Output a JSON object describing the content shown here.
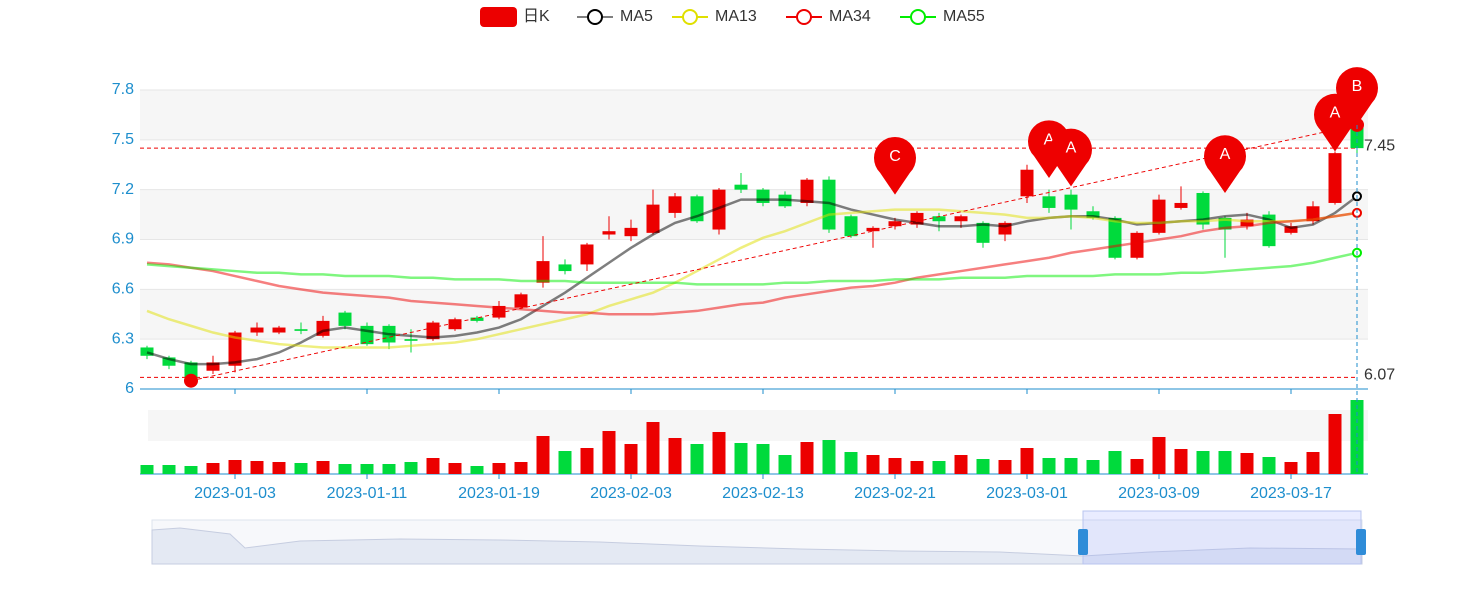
{
  "chart_data": {
    "type": "candlestick",
    "categories": [
      null,
      null,
      null,
      null,
      "2023-01-03",
      null,
      null,
      null,
      null,
      null,
      "2023-01-11",
      null,
      null,
      null,
      null,
      null,
      "2023-01-19",
      null,
      null,
      null,
      null,
      null,
      "2023-02-03",
      null,
      null,
      null,
      null,
      null,
      "2023-02-13",
      null,
      null,
      null,
      null,
      null,
      "2023-02-21",
      null,
      null,
      null,
      null,
      null,
      "2023-03-01",
      null,
      null,
      null,
      null,
      null,
      "2023-03-09",
      null,
      null,
      null,
      null,
      null,
      "2023-03-17",
      null,
      null,
      null
    ],
    "ylim": [
      6,
      7.8
    ],
    "yticks": [
      6,
      6.3,
      6.6,
      6.9,
      7.2,
      7.5,
      7.8
    ],
    "grid": true,
    "up_color": "#ec0000",
    "down_color": "#00da3c",
    "series": [
      {
        "name": "日K",
        "color": "#ec0000",
        "values": [
          [
            6.25,
            6.2,
            6.18,
            6.26
          ],
          [
            6.19,
            6.14,
            6.12,
            6.2
          ],
          [
            6.16,
            6.07,
            6.05,
            6.17
          ],
          [
            6.11,
            6.16,
            6.09,
            6.2
          ],
          [
            6.14,
            6.34,
            6.1,
            6.35
          ],
          [
            6.34,
            6.37,
            6.32,
            6.4
          ],
          [
            6.34,
            6.37,
            6.33,
            6.38
          ],
          [
            6.36,
            6.35,
            6.33,
            6.4
          ],
          [
            6.32,
            6.41,
            6.31,
            6.44
          ],
          [
            6.46,
            6.38,
            6.36,
            6.47
          ],
          [
            6.38,
            6.27,
            6.26,
            6.4
          ],
          [
            6.38,
            6.28,
            6.24,
            6.39
          ],
          [
            6.3,
            6.29,
            6.22,
            6.36
          ],
          [
            6.3,
            6.4,
            6.29,
            6.41
          ],
          [
            6.36,
            6.42,
            6.35,
            6.43
          ],
          [
            6.43,
            6.41,
            6.4,
            6.44
          ],
          [
            6.43,
            6.5,
            6.42,
            6.53
          ],
          [
            6.49,
            6.57,
            6.48,
            6.58
          ],
          [
            6.64,
            6.77,
            6.61,
            6.92
          ],
          [
            6.75,
            6.71,
            6.69,
            6.78
          ],
          [
            6.75,
            6.87,
            6.71,
            6.88
          ],
          [
            6.93,
            6.95,
            6.9,
            7.04
          ],
          [
            6.92,
            6.97,
            6.89,
            7.02
          ],
          [
            6.94,
            7.11,
            6.93,
            7.2
          ],
          [
            7.06,
            7.16,
            7.03,
            7.18
          ],
          [
            7.16,
            7.01,
            7.0,
            7.17
          ],
          [
            6.96,
            7.2,
            6.93,
            7.21
          ],
          [
            7.23,
            7.2,
            7.18,
            7.3
          ],
          [
            7.2,
            7.12,
            7.1,
            7.21
          ],
          [
            7.17,
            7.1,
            7.09,
            7.19
          ],
          [
            7.12,
            7.26,
            7.1,
            7.27
          ],
          [
            7.26,
            6.96,
            6.94,
            7.28
          ],
          [
            7.04,
            6.92,
            6.91,
            7.05
          ],
          [
            6.95,
            6.97,
            6.85,
            6.98
          ],
          [
            6.98,
            7.01,
            6.96,
            7.03
          ],
          [
            6.99,
            7.06,
            6.97,
            7.07
          ],
          [
            7.04,
            7.01,
            6.95,
            7.06
          ],
          [
            7.01,
            7.04,
            6.97,
            7.05
          ],
          [
            7.0,
            6.88,
            6.85,
            7.01
          ],
          [
            6.93,
            7.0,
            6.89,
            7.01
          ],
          [
            7.16,
            7.32,
            7.12,
            7.35
          ],
          [
            7.16,
            7.09,
            7.06,
            7.2
          ],
          [
            7.17,
            7.08,
            6.96,
            7.2
          ],
          [
            7.07,
            7.03,
            7.02,
            7.1
          ],
          [
            7.03,
            6.79,
            6.78,
            7.04
          ],
          [
            6.79,
            6.94,
            6.78,
            6.95
          ],
          [
            6.94,
            7.14,
            6.93,
            7.17
          ],
          [
            7.09,
            7.12,
            7.08,
            7.22
          ],
          [
            7.18,
            6.99,
            6.96,
            7.19
          ],
          [
            7.03,
            6.96,
            6.79,
            7.04
          ],
          [
            6.98,
            7.02,
            6.96,
            7.06
          ],
          [
            7.05,
            6.86,
            6.85,
            7.07
          ],
          [
            6.94,
            6.98,
            6.93,
            7.0
          ],
          [
            7.01,
            7.1,
            6.99,
            7.13
          ],
          [
            7.12,
            7.42,
            7.11,
            7.43
          ],
          [
            7.58,
            7.45,
            7.4,
            7.6
          ]
        ]
      },
      {
        "name": "MA5",
        "color": "#000000",
        "values": [
          6.22,
          6.18,
          6.15,
          6.15,
          6.16,
          6.18,
          6.22,
          6.28,
          6.35,
          6.37,
          6.35,
          6.33,
          6.32,
          6.31,
          6.32,
          6.34,
          6.37,
          6.42,
          6.5,
          6.58,
          6.67,
          6.76,
          6.85,
          6.93,
          7.0,
          7.04,
          7.09,
          7.14,
          7.14,
          7.14,
          7.13,
          7.12,
          7.08,
          7.05,
          7.02,
          7.0,
          6.98,
          6.98,
          6.99,
          6.98,
          7.01,
          7.03,
          7.04,
          7.04,
          7.02,
          6.99,
          7.0,
          7.01,
          7.02,
          7.04,
          7.05,
          7.02,
          6.97,
          6.99,
          7.06,
          7.16
        ]
      },
      {
        "name": "MA13",
        "color": "#e0e000",
        "values": [
          6.47,
          6.42,
          6.38,
          6.34,
          6.31,
          6.29,
          6.27,
          6.26,
          6.25,
          6.25,
          6.25,
          6.25,
          6.26,
          6.27,
          6.28,
          6.3,
          6.33,
          6.36,
          6.39,
          6.42,
          6.45,
          6.5,
          6.54,
          6.58,
          6.64,
          6.71,
          6.78,
          6.85,
          6.91,
          6.95,
          7.0,
          7.05,
          7.06,
          7.07,
          7.08,
          7.08,
          7.08,
          7.07,
          7.06,
          7.05,
          7.03,
          7.03,
          7.04,
          7.03,
          7.01,
          7.0,
          7.0,
          7.01,
          7.01,
          7.02,
          7.01,
          7.01,
          7.01,
          7.02,
          7.04,
          7.06
        ]
      },
      {
        "name": "MA34",
        "color": "#ee0000",
        "values": [
          6.76,
          6.75,
          6.73,
          6.71,
          6.68,
          6.65,
          6.62,
          6.6,
          6.58,
          6.57,
          6.56,
          6.55,
          6.53,
          6.52,
          6.51,
          6.5,
          6.49,
          6.48,
          6.47,
          6.46,
          6.46,
          6.45,
          6.45,
          6.45,
          6.46,
          6.47,
          6.49,
          6.51,
          6.52,
          6.55,
          6.57,
          6.59,
          6.61,
          6.62,
          6.64,
          6.67,
          6.69,
          6.71,
          6.73,
          6.75,
          6.77,
          6.79,
          6.82,
          6.84,
          6.86,
          6.88,
          6.9,
          6.92,
          6.95,
          6.97,
          6.98,
          7.0,
          7.01,
          7.02,
          7.04,
          7.06
        ]
      },
      {
        "name": "MA55",
        "color": "#00ee00",
        "values": [
          6.75,
          6.74,
          6.73,
          6.72,
          6.71,
          6.7,
          6.7,
          6.69,
          6.69,
          6.68,
          6.68,
          6.68,
          6.67,
          6.67,
          6.66,
          6.66,
          6.66,
          6.65,
          6.65,
          6.65,
          6.64,
          6.64,
          6.64,
          6.64,
          6.64,
          6.63,
          6.63,
          6.63,
          6.63,
          6.64,
          6.64,
          6.65,
          6.65,
          6.65,
          6.66,
          6.66,
          6.66,
          6.67,
          6.67,
          6.67,
          6.68,
          6.68,
          6.68,
          6.68,
          6.69,
          6.69,
          6.69,
          6.7,
          6.7,
          6.71,
          6.72,
          6.73,
          6.74,
          6.76,
          6.79,
          6.82
        ]
      }
    ],
    "volume": {
      "ylim": [
        0,
        74
      ],
      "values": [
        9,
        9,
        8,
        11,
        14,
        13,
        12,
        11,
        13,
        10,
        10,
        10,
        12,
        16,
        11,
        8,
        11,
        12,
        38,
        23,
        26,
        43,
        30,
        52,
        36,
        30,
        42,
        31,
        30,
        19,
        32,
        34,
        22,
        19,
        16,
        13,
        13,
        19,
        15,
        14,
        26,
        16,
        16,
        14,
        23,
        15,
        37,
        25,
        23,
        23,
        21,
        17,
        12,
        22,
        60,
        74
      ]
    },
    "markers": [
      {
        "label": "C",
        "category_index": 34,
        "value": 7.17
      },
      {
        "label": "A",
        "category_index": 41,
        "value": 7.27
      },
      {
        "label": "A",
        "category_index": 42,
        "value": 7.22
      },
      {
        "label": "A",
        "category_index": 49,
        "value": 7.18
      },
      {
        "label": "A",
        "category_index": 54,
        "value": 7.43
      },
      {
        "label": "B",
        "category_index": 55,
        "value": 7.59
      }
    ],
    "mark_lines": [
      7.45,
      6.07
    ],
    "trend_line": {
      "from": [
        2,
        6.05
      ],
      "to": [
        55,
        7.59
      ]
    }
  }
}
